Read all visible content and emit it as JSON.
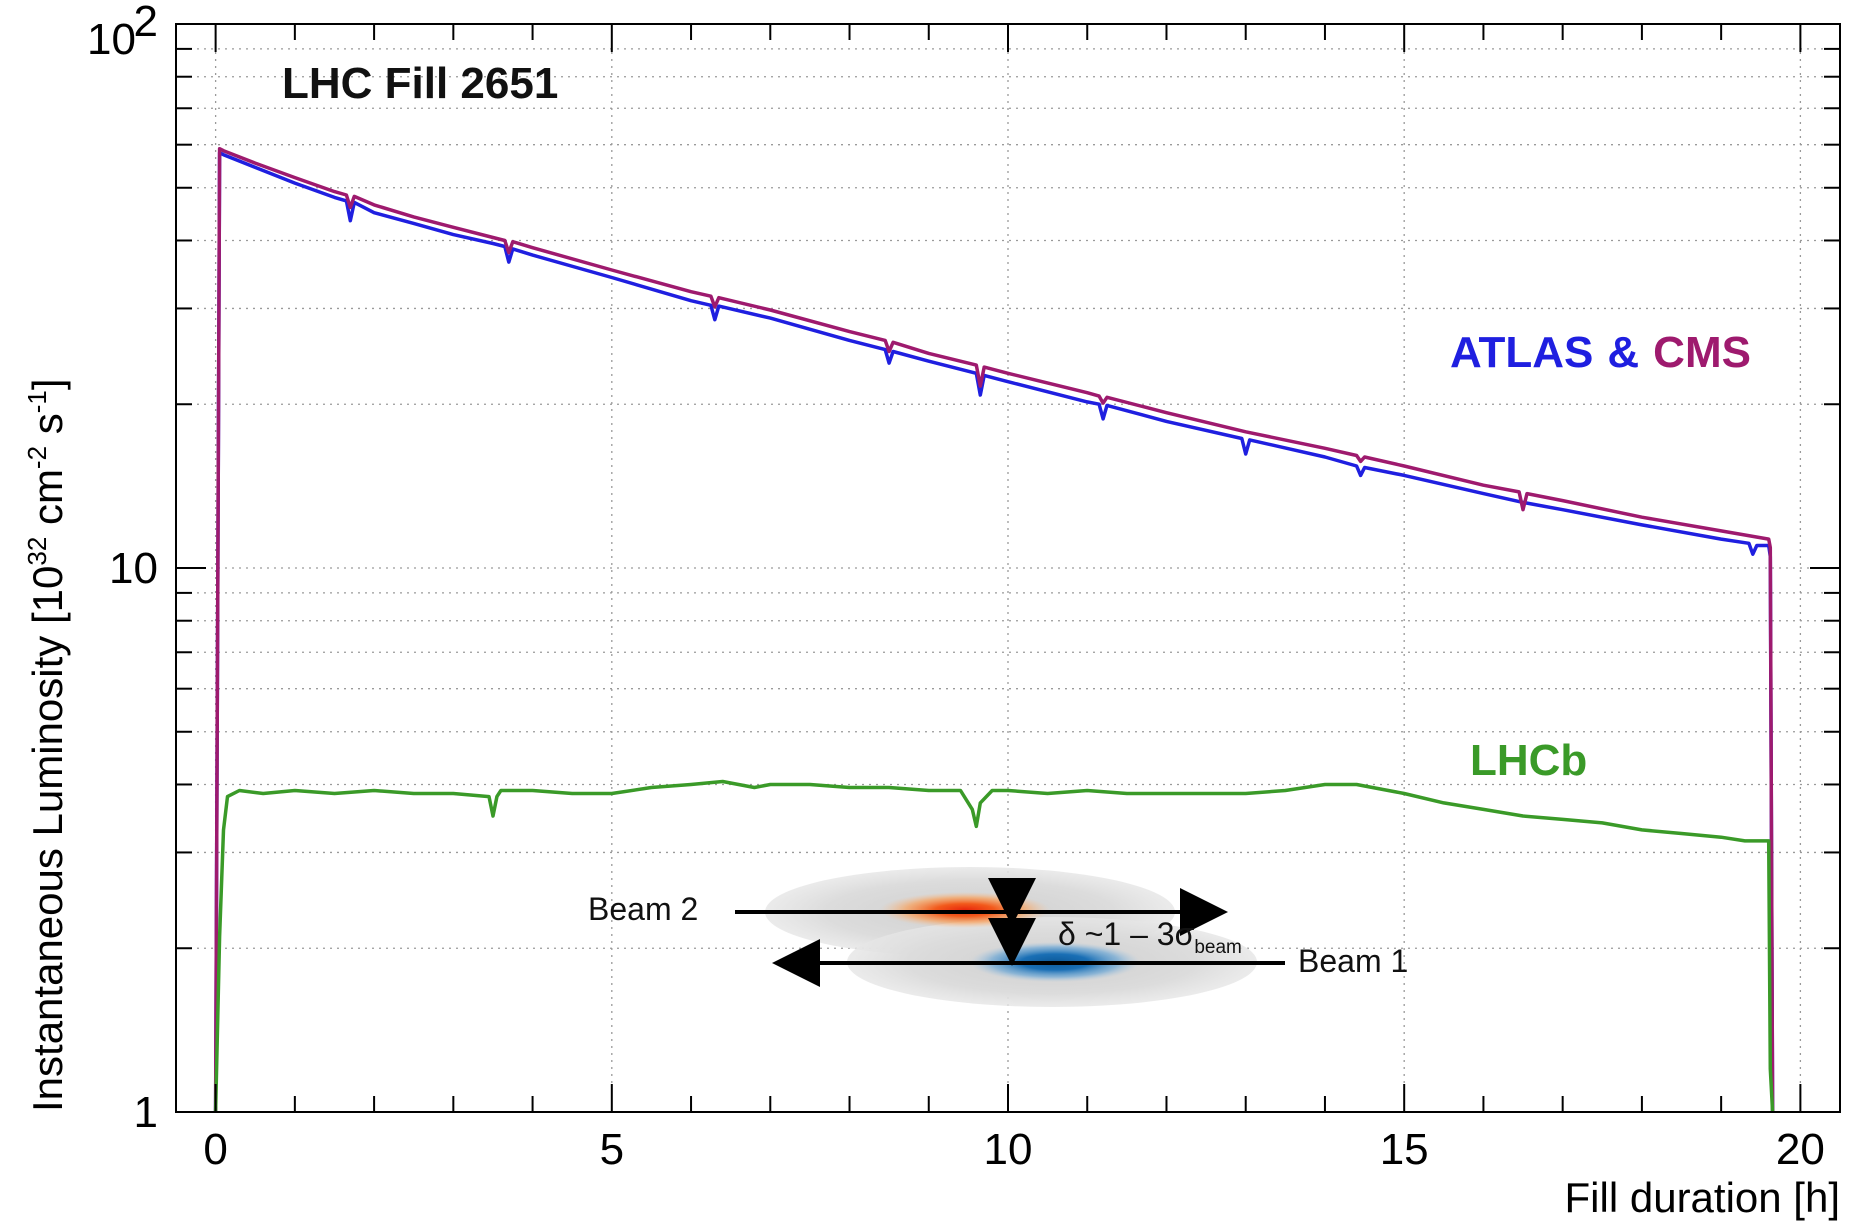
{
  "chart_data": {
    "type": "line",
    "title": "LHC Fill 2651",
    "xlabel": "Fill duration [h]",
    "ylabel_parts": {
      "prefix": "Instantaneous Luminosity [10",
      "exp1": "32",
      "mid1": " cm",
      "exp2": "-2",
      "mid2": " s",
      "exp3": "-1",
      "suffix": "]"
    },
    "xlim": [
      -0.5,
      20.5
    ],
    "ylim": [
      1,
      100
    ],
    "yscale": "log",
    "grid": true,
    "x_ticks": [
      0,
      5,
      10,
      15,
      20
    ],
    "x_tick_labels": [
      "0",
      "5",
      "10",
      "15",
      "20"
    ],
    "y_tick_labels": {
      "bottom": "1",
      "mid": "10",
      "top_base": "10",
      "top_exp": "2"
    },
    "annotations": {
      "atlas_label": "ATLAS",
      "amp_label": "&",
      "cms_label": "CMS",
      "lhcb_label": "LHCb"
    },
    "inset": {
      "beam2_label": "Beam 2",
      "beam1_label": "Beam 1",
      "separation_prefix": "δ ~1 – 3σ",
      "separation_sub": "beam"
    },
    "series": [
      {
        "name": "ATLAS",
        "color": "#1f1fe0",
        "x": [
          0.0,
          0.05,
          0.1,
          0.5,
          1.0,
          1.5,
          1.65,
          1.7,
          1.75,
          2.0,
          2.5,
          3.0,
          3.5,
          3.65,
          3.7,
          3.75,
          4.0,
          5.0,
          6.0,
          6.25,
          6.3,
          6.35,
          7.0,
          8.0,
          8.45,
          8.5,
          8.55,
          9.0,
          9.6,
          9.65,
          9.7,
          10.0,
          11.0,
          11.15,
          11.2,
          11.25,
          12.0,
          12.95,
          13.0,
          13.05,
          14.0,
          14.4,
          14.45,
          14.5,
          15.0,
          16.0,
          16.5,
          17.0,
          18.0,
          19.0,
          19.35,
          19.4,
          19.45,
          19.6,
          19.62,
          19.65
        ],
        "y": [
          1.0,
          58.0,
          57.5,
          54.5,
          51.0,
          48.0,
          47.3,
          43.5,
          47.0,
          45.0,
          43.0,
          41.0,
          39.5,
          39.0,
          36.5,
          38.6,
          37.6,
          34.2,
          31.0,
          30.4,
          28.6,
          30.3,
          28.8,
          26.2,
          25.2,
          23.8,
          25.0,
          24.0,
          22.8,
          20.8,
          22.6,
          22.0,
          20.2,
          20.0,
          18.8,
          19.9,
          18.6,
          17.3,
          16.2,
          17.2,
          16.0,
          15.4,
          14.8,
          15.3,
          14.8,
          13.7,
          13.2,
          12.8,
          12.0,
          11.3,
          11.1,
          10.6,
          11.0,
          11.0,
          10.5,
          1.0
        ]
      },
      {
        "name": "CMS",
        "color": "#9e1a6e",
        "x": [
          0.0,
          0.05,
          0.1,
          0.5,
          1.0,
          1.5,
          1.65,
          1.7,
          1.75,
          2.0,
          2.5,
          3.0,
          3.5,
          3.65,
          3.7,
          3.75,
          4.0,
          5.0,
          6.0,
          6.25,
          6.3,
          6.35,
          7.0,
          8.0,
          8.45,
          8.5,
          8.55,
          9.0,
          9.6,
          9.65,
          9.7,
          10.0,
          11.0,
          11.15,
          11.2,
          11.25,
          12.0,
          13.0,
          14.0,
          14.4,
          14.45,
          14.5,
          15.0,
          16.0,
          16.45,
          16.5,
          16.55,
          17.0,
          18.0,
          19.0,
          19.6,
          19.62,
          19.65
        ],
        "y": [
          1.0,
          59.0,
          58.5,
          55.5,
          52.2,
          49.2,
          48.5,
          46.0,
          48.2,
          46.5,
          44.2,
          42.3,
          40.5,
          40.0,
          38.0,
          39.8,
          38.8,
          35.3,
          32.2,
          31.6,
          30.2,
          31.4,
          29.8,
          27.2,
          26.2,
          25.0,
          26.0,
          24.8,
          23.6,
          21.6,
          23.4,
          22.8,
          21.0,
          20.7,
          20.1,
          20.6,
          19.3,
          17.8,
          16.6,
          16.1,
          15.7,
          16.0,
          15.4,
          14.2,
          13.8,
          12.8,
          13.7,
          13.3,
          12.4,
          11.7,
          11.3,
          10.9,
          1.0
        ]
      },
      {
        "name": "LHCb",
        "color": "#3a9a28",
        "x": [
          0.0,
          0.05,
          0.1,
          0.15,
          0.3,
          0.6,
          1.0,
          1.5,
          2.0,
          2.5,
          3.0,
          3.45,
          3.5,
          3.55,
          3.6,
          4.0,
          4.5,
          5.0,
          5.5,
          6.0,
          6.4,
          6.8,
          7.0,
          7.5,
          8.0,
          8.5,
          9.0,
          9.4,
          9.55,
          9.6,
          9.65,
          9.8,
          10.0,
          10.5,
          11.0,
          11.5,
          12.0,
          12.5,
          13.0,
          13.5,
          14.0,
          14.4,
          14.8,
          15.0,
          15.5,
          16.0,
          16.5,
          17.0,
          17.5,
          18.0,
          18.5,
          19.0,
          19.3,
          19.6,
          19.62,
          19.65
        ],
        "y": [
          1.0,
          2.1,
          3.3,
          3.8,
          3.9,
          3.85,
          3.9,
          3.85,
          3.9,
          3.85,
          3.85,
          3.8,
          3.5,
          3.8,
          3.9,
          3.9,
          3.85,
          3.85,
          3.95,
          4.0,
          4.05,
          3.95,
          4.0,
          4.0,
          3.95,
          3.95,
          3.9,
          3.9,
          3.6,
          3.35,
          3.7,
          3.9,
          3.9,
          3.85,
          3.9,
          3.85,
          3.85,
          3.85,
          3.85,
          3.9,
          4.0,
          4.0,
          3.9,
          3.85,
          3.7,
          3.6,
          3.5,
          3.45,
          3.4,
          3.3,
          3.25,
          3.2,
          3.15,
          3.15,
          1.2,
          1.0
        ]
      }
    ]
  }
}
